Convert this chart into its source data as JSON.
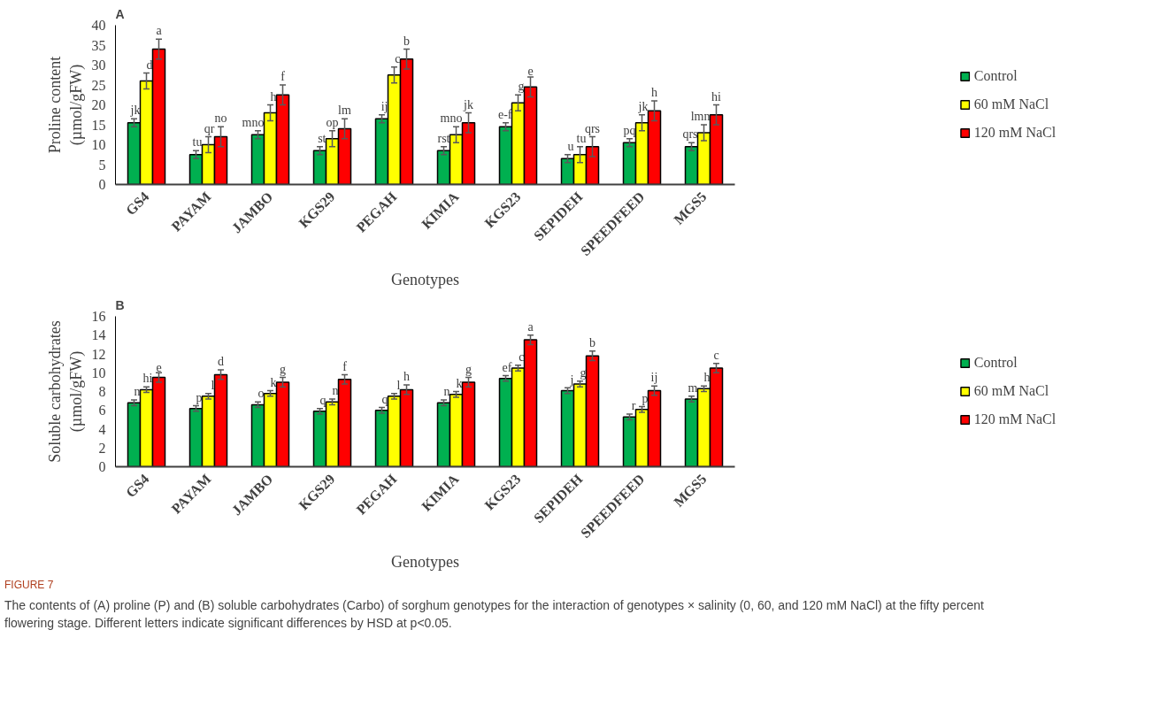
{
  "chart_data": [
    {
      "type": "bar",
      "title": "A",
      "xlabel": "Genotypes",
      "ylabel": "Proline content\n(µmol/gFW)",
      "categories": [
        "GS4",
        "PAYAM",
        "JAMBO",
        "KGS29",
        "PEGAH",
        "KIMIA",
        "KGS23",
        "SEPIDEH",
        "SPEEDFEED",
        "MGS5"
      ],
      "series": [
        {
          "name": "Control",
          "color": "#00b050",
          "values": [
            15.5,
            7.5,
            12.5,
            8.5,
            16.5,
            8.5,
            14.5,
            6.5,
            10.5,
            9.5
          ],
          "errors": [
            1,
            1,
            1,
            1,
            1,
            1,
            1,
            1,
            1,
            1
          ],
          "value_labels": [
            "jk",
            "tu",
            "mno",
            "st",
            "ij",
            "rst",
            "e-f",
            "u",
            "pq",
            "qrs"
          ]
        },
        {
          "name": "60 mM NaCl",
          "color": "#ffff00",
          "values": [
            26,
            10,
            18,
            11.5,
            27.5,
            12.5,
            20.5,
            7.5,
            15.5,
            13
          ],
          "errors": [
            2,
            2,
            2,
            2,
            2,
            2,
            2,
            2,
            2,
            2
          ],
          "value_labels": [
            "d",
            "qr",
            "h",
            "op",
            "c",
            "mno",
            "g",
            "tu",
            "jk",
            "lmn"
          ]
        },
        {
          "name": "120 mM NaCl",
          "color": "#ff0000",
          "values": [
            34,
            12,
            22.5,
            14,
            31.5,
            15.5,
            24.5,
            9.5,
            18.5,
            17.5
          ],
          "errors": [
            2.5,
            2.5,
            2.5,
            2.5,
            2.5,
            2.5,
            2.5,
            2.5,
            2.5,
            2.5
          ],
          "value_labels": [
            "a",
            "no",
            "f",
            "lm",
            "b",
            "jk",
            "e",
            "qrs",
            "h",
            "hi"
          ]
        }
      ],
      "ylim": [
        0,
        40
      ],
      "yticks": [
        0,
        5,
        10,
        15,
        20,
        25,
        30,
        35,
        40
      ],
      "legend": "right"
    },
    {
      "type": "bar",
      "title": "B",
      "xlabel": "Genotypes",
      "ylabel": "Soluble carbohydrates\n(µmol/gFW)",
      "categories": [
        "GS4",
        "PAYAM",
        "JAMBO",
        "KGS29",
        "PEGAH",
        "KIMIA",
        "KGS23",
        "SEPIDEH",
        "SPEEDFEED",
        "MGS5"
      ],
      "series": [
        {
          "name": "Control",
          "color": "#00b050",
          "values": [
            6.8,
            6.2,
            6.6,
            5.9,
            6.0,
            6.8,
            9.4,
            8.1,
            5.3,
            7.2
          ],
          "errors": [
            0.3,
            0.3,
            0.3,
            0.3,
            0.3,
            0.3,
            0.3,
            0.3,
            0.3,
            0.3
          ],
          "value_labels": [
            "n",
            "p",
            "o",
            "q",
            "q",
            "n",
            "ef",
            "j",
            "r",
            "m"
          ]
        },
        {
          "name": "60 mM NaCl",
          "color": "#ffff00",
          "values": [
            8.2,
            7.5,
            7.8,
            6.9,
            7.5,
            7.7,
            10.5,
            8.8,
            6.1,
            8.3
          ],
          "errors": [
            0.3,
            0.3,
            0.3,
            0.3,
            0.3,
            0.3,
            0.3,
            0.3,
            0.3,
            0.3
          ],
          "value_labels": [
            "hi",
            "l",
            "k",
            "n",
            "l",
            "k",
            "c",
            "g",
            "p",
            "h"
          ]
        },
        {
          "name": "120 mM NaCl",
          "color": "#ff0000",
          "values": [
            9.5,
            9.8,
            9.0,
            9.3,
            8.2,
            9.0,
            13.5,
            11.8,
            8.1,
            10.5
          ],
          "errors": [
            0.5,
            0.5,
            0.5,
            0.5,
            0.5,
            0.5,
            0.5,
            0.5,
            0.5,
            0.5
          ],
          "value_labels": [
            "e",
            "d",
            "g",
            "f",
            "h",
            "g",
            "a",
            "b",
            "ij",
            "c"
          ]
        }
      ],
      "ylim": [
        0,
        16
      ],
      "yticks": [
        0,
        2,
        4,
        6,
        8,
        10,
        12,
        14,
        16
      ],
      "legend": "right",
      "annotations": [
        "FIGURE 7",
        "The contents of (A) proline (P) and (B) soluble carbohydrates (Carbo) of sorghum genotypes for the interaction of genotypes × salinity (0, 60, and 120 mM NaCl) at the fifty percent flowering stage. Different letters indicate significant differences by HSD at p<0.05."
      ]
    }
  ]
}
